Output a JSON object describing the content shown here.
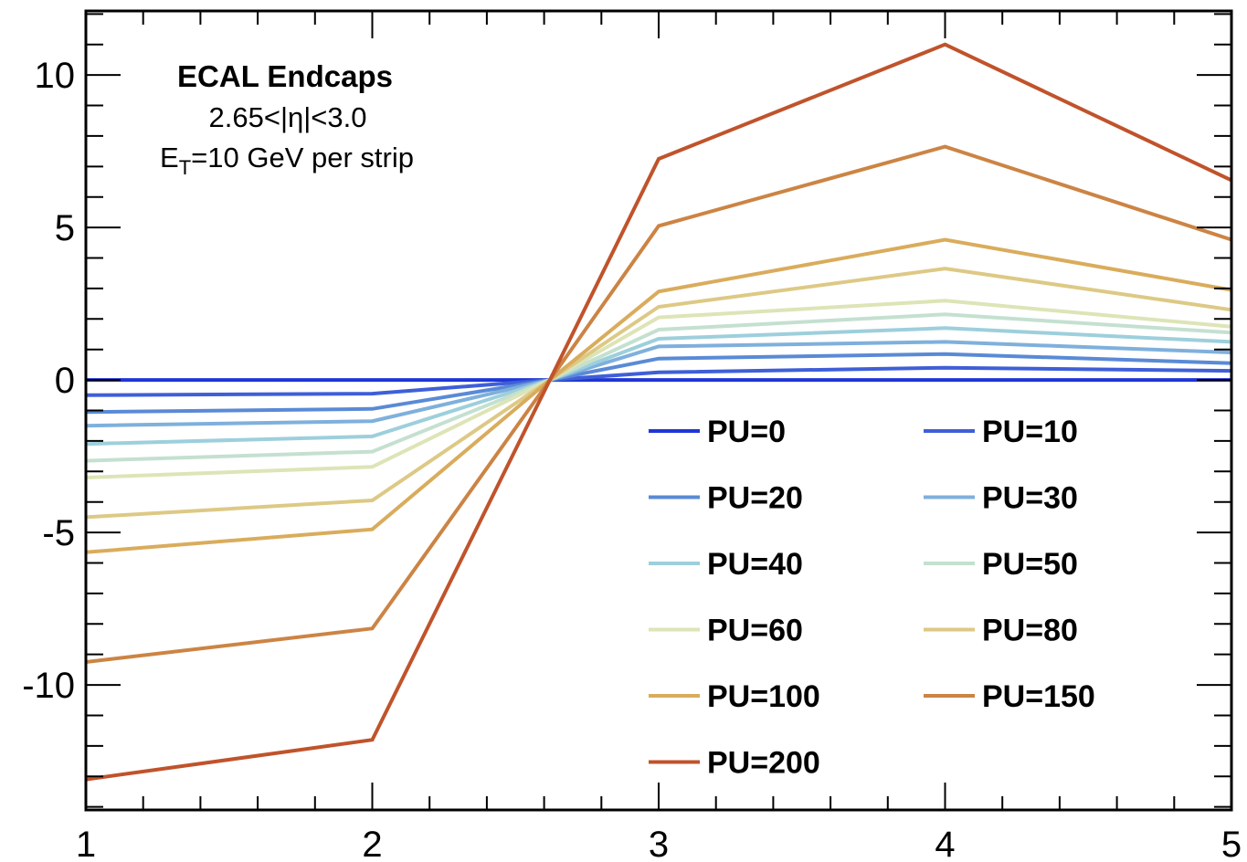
{
  "chart_data": {
    "type": "line",
    "title": "",
    "xlabel": "",
    "ylabel": "",
    "xlim": [
      1,
      5
    ],
    "ylim": [
      -14.1,
      12.1
    ],
    "x_ticks": [
      1,
      2,
      3,
      4,
      5
    ],
    "x_tick_labels": [
      "1",
      "2",
      "3",
      "4",
      "5"
    ],
    "y_ticks": [
      -10,
      -5,
      0,
      5,
      10
    ],
    "y_tick_labels": [
      "-10",
      "-5",
      "0",
      "5",
      "10"
    ],
    "grid": false,
    "legend_position": "bottom-right",
    "annotation": {
      "title": "ECAL Endcaps",
      "eta_range": "2.65<|η|<3.0",
      "et_main": "E",
      "et_sub": "T",
      "et_rest": "=10 GeV per strip"
    },
    "series": [
      {
        "name": "PU=0",
        "color": "#1f35d6",
        "x": [
          1,
          2,
          2.62,
          3,
          4,
          5
        ],
        "y": [
          0,
          0,
          0,
          0,
          0,
          0
        ]
      },
      {
        "name": "PU=10",
        "color": "#3f5fd8",
        "x": [
          1,
          2,
          2.62,
          3,
          4,
          5
        ],
        "y": [
          -0.5,
          -0.45,
          0,
          0.25,
          0.4,
          0.3
        ]
      },
      {
        "name": "PU=20",
        "color": "#5a8ad6",
        "x": [
          1,
          2,
          2.62,
          3,
          4,
          5
        ],
        "y": [
          -1.05,
          -0.95,
          0,
          0.7,
          0.85,
          0.55
        ]
      },
      {
        "name": "PU=30",
        "color": "#7fb0dc",
        "x": [
          1,
          2,
          2.62,
          3,
          4,
          5
        ],
        "y": [
          -1.5,
          -1.35,
          0,
          1.1,
          1.25,
          0.9
        ]
      },
      {
        "name": "PU=40",
        "color": "#9dcfdc",
        "x": [
          1,
          2,
          2.62,
          3,
          4,
          5
        ],
        "y": [
          -2.1,
          -1.85,
          0,
          1.35,
          1.7,
          1.25
        ]
      },
      {
        "name": "PU=50",
        "color": "#c4e0d0",
        "x": [
          1,
          2,
          2.62,
          3,
          4,
          5
        ],
        "y": [
          -2.65,
          -2.35,
          0,
          1.65,
          2.15,
          1.55
        ]
      },
      {
        "name": "PU=60",
        "color": "#dde4b6",
        "x": [
          1,
          2,
          2.62,
          3,
          4,
          5
        ],
        "y": [
          -3.2,
          -2.85,
          0,
          2.05,
          2.6,
          1.75
        ]
      },
      {
        "name": "PU=80",
        "color": "#ddc985",
        "x": [
          1,
          2,
          2.62,
          3,
          4,
          5
        ],
        "y": [
          -4.5,
          -3.95,
          0,
          2.4,
          3.65,
          2.3
        ]
      },
      {
        "name": "PU=100",
        "color": "#d9ac5c",
        "x": [
          1,
          2,
          2.62,
          3,
          4,
          5
        ],
        "y": [
          -5.65,
          -4.9,
          0,
          2.9,
          4.6,
          2.95
        ]
      },
      {
        "name": "PU=150",
        "color": "#cc8444",
        "x": [
          1,
          2,
          2.62,
          3,
          4,
          5
        ],
        "y": [
          -9.25,
          -8.15,
          0,
          5.05,
          7.65,
          4.6
        ]
      },
      {
        "name": "PU=200",
        "color": "#c0532b",
        "x": [
          1,
          2,
          2.62,
          3,
          4,
          5
        ],
        "y": [
          -13.1,
          -11.8,
          0,
          7.25,
          11.0,
          6.55
        ]
      }
    ]
  }
}
